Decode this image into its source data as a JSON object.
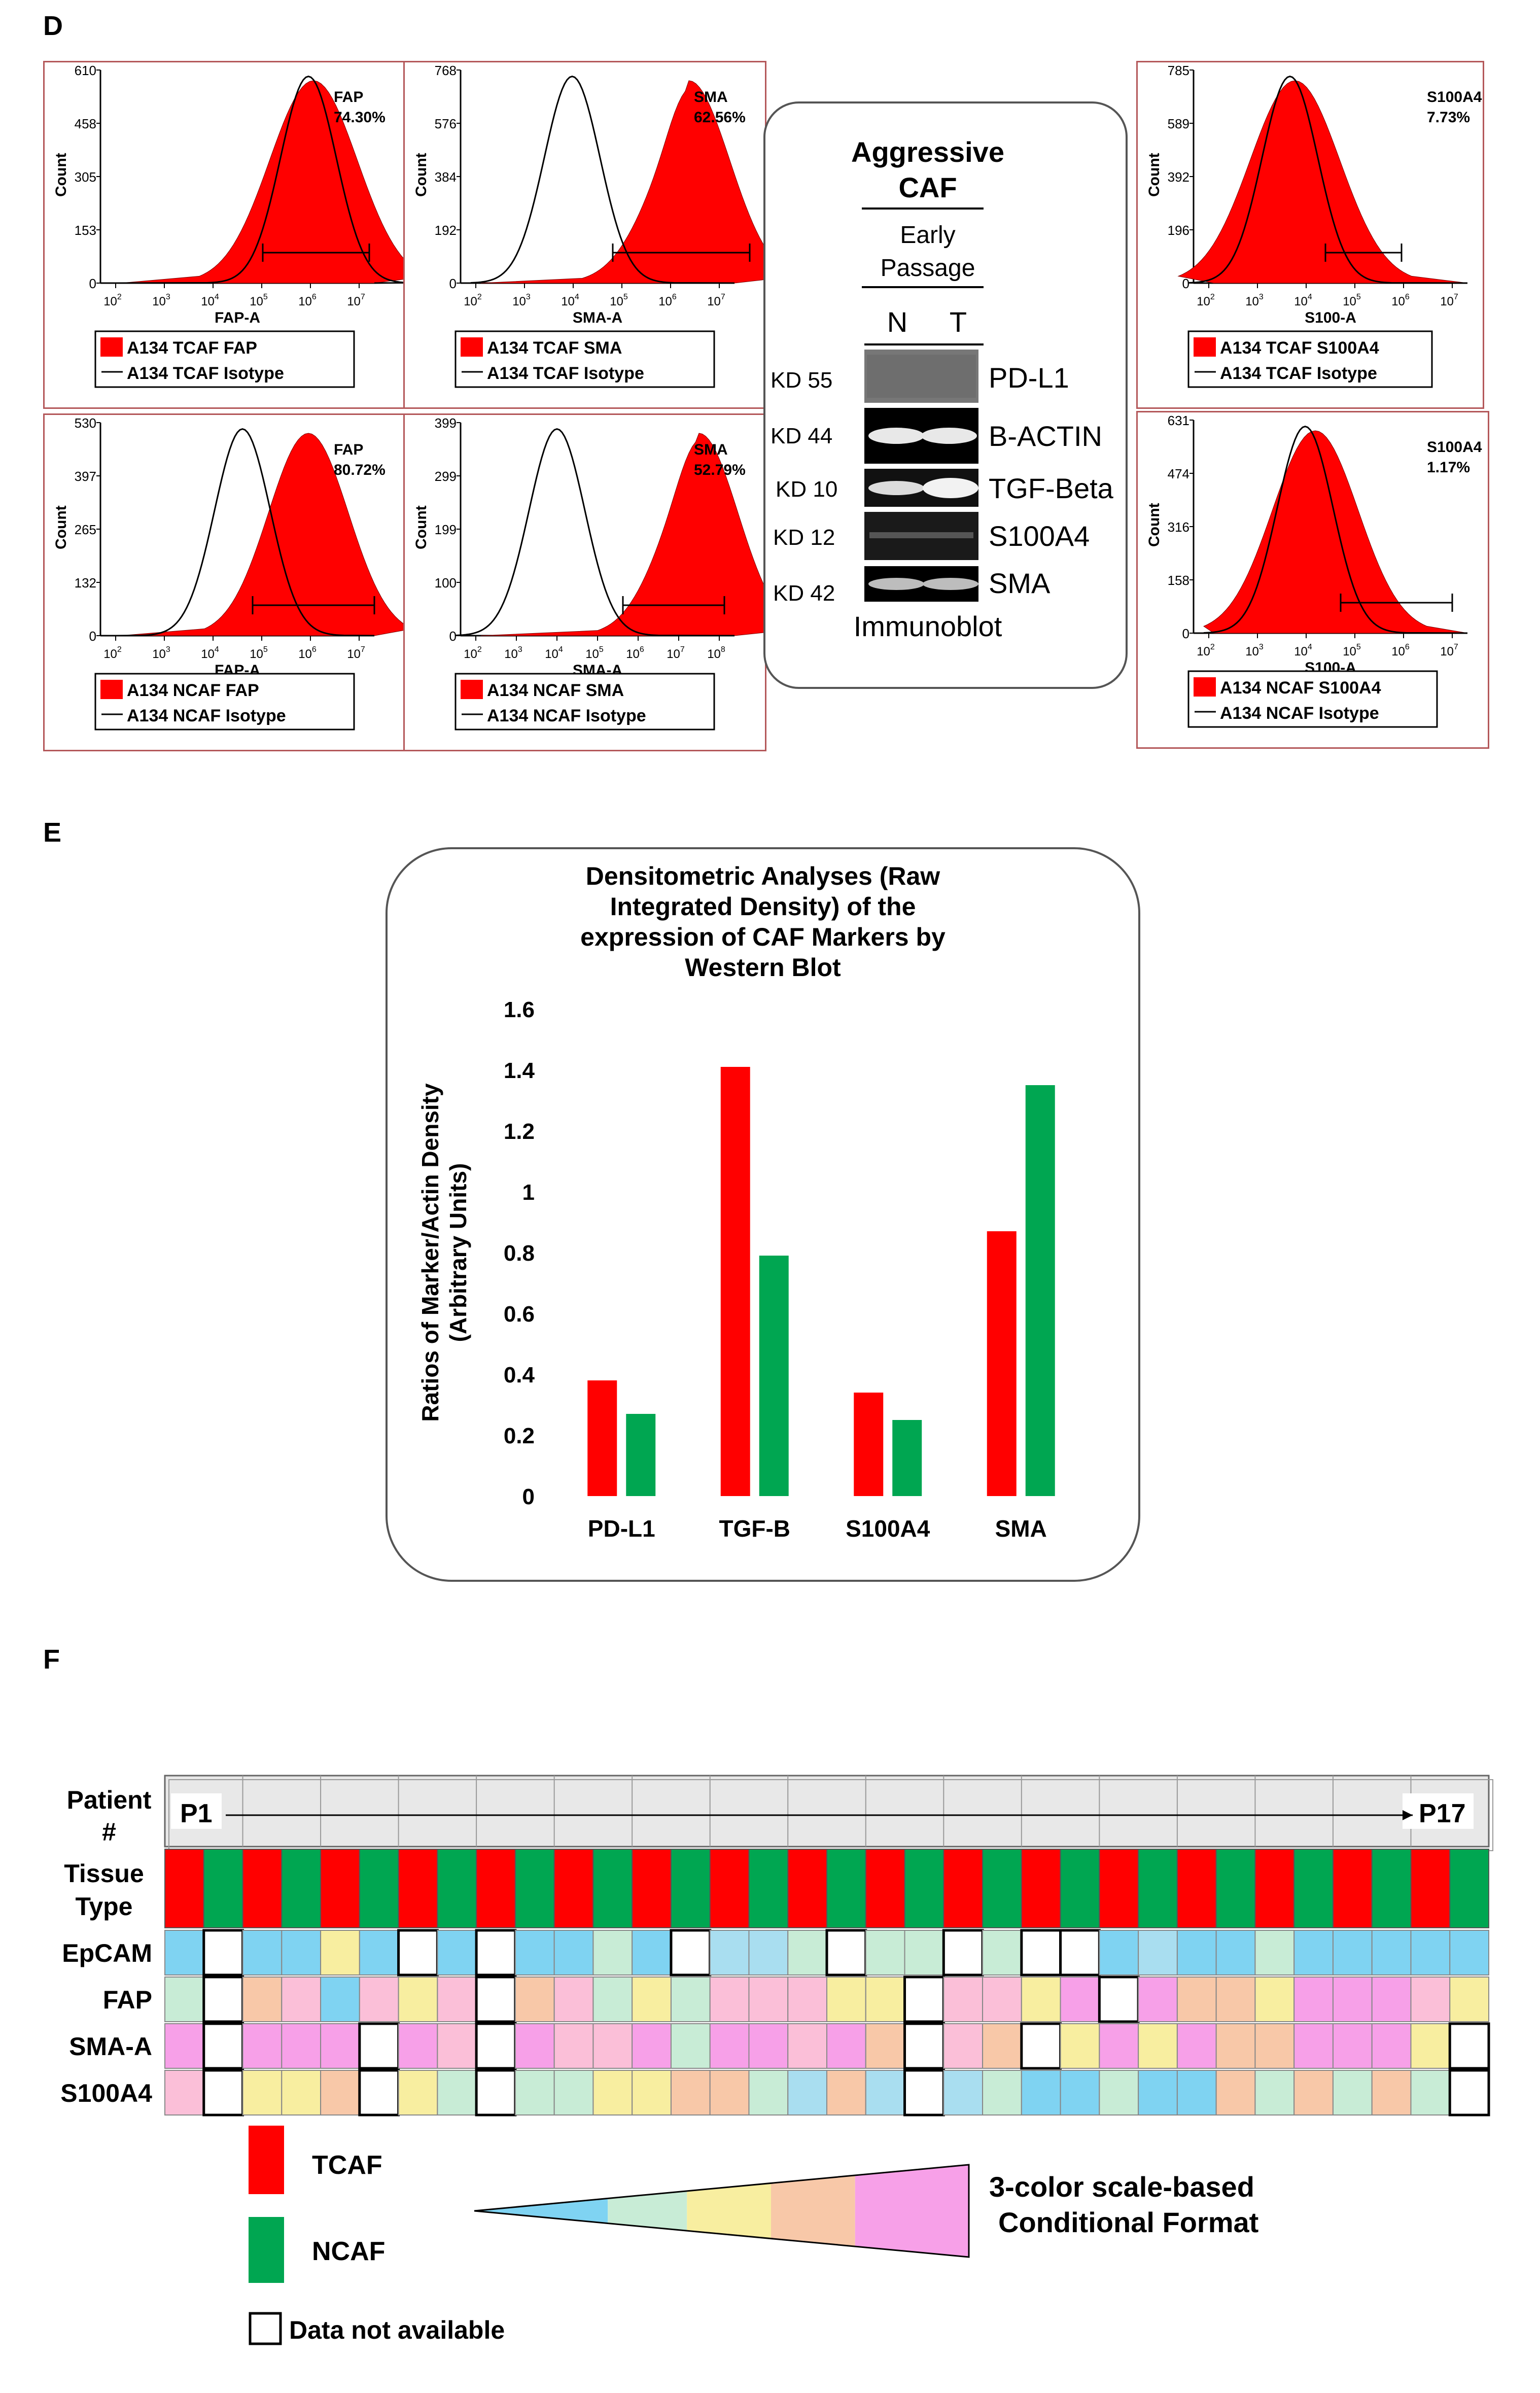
{
  "panels": {
    "d": "D",
    "e": "E",
    "f": "F"
  },
  "colors": {
    "tcaf": "#ff0000",
    "ncaf": "#00a651",
    "gate": "#000000",
    "frame": "#b4585a"
  },
  "flow_plots": [
    {
      "id": "tcaf-fap",
      "yticks": [
        "610",
        "458",
        "305",
        "153",
        "0"
      ],
      "xticks": [
        "2",
        "3",
        "4",
        "5",
        "6",
        "7"
      ],
      "ylabel": "Count",
      "xlabel": "FAP-A",
      "marker": "FAP",
      "percent": "74.30%",
      "legend_fill": "A134 TCAF FAP",
      "legend_line": "A134 TCAF Isotype"
    },
    {
      "id": "tcaf-sma",
      "yticks": [
        "768",
        "576",
        "384",
        "192",
        "0"
      ],
      "xticks": [
        "2",
        "3",
        "4",
        "5",
        "6",
        "7"
      ],
      "ylabel": "Count",
      "xlabel": "SMA-A",
      "marker": "SMA",
      "percent": "62.56%",
      "legend_fill": "A134 TCAF SMA",
      "legend_line": "A134 TCAF Isotype"
    },
    {
      "id": "tcaf-s100",
      "yticks": [
        "785",
        "589",
        "392",
        "196",
        "0"
      ],
      "xticks": [
        "2",
        "3",
        "4",
        "5",
        "6",
        "7"
      ],
      "ylabel": "Count",
      "xlabel": "S100-A",
      "marker": "S100A4",
      "percent": "7.73%",
      "legend_fill": "A134 TCAF S100A4",
      "legend_line": "A134 TCAF Isotype"
    },
    {
      "id": "ncaf-fap",
      "yticks": [
        "530",
        "397",
        "265",
        "132",
        "0"
      ],
      "xticks": [
        "2",
        "3",
        "4",
        "5",
        "6",
        "7"
      ],
      "ylabel": "Count",
      "xlabel": "FAP-A",
      "marker": "FAP",
      "percent": "80.72%",
      "legend_fill": "A134 NCAF FAP",
      "legend_line": "A134 NCAF Isotype"
    },
    {
      "id": "ncaf-sma",
      "yticks": [
        "399",
        "299",
        "199",
        "100",
        "0"
      ],
      "xticks": [
        "2",
        "3",
        "4",
        "5",
        "6",
        "7",
        "8"
      ],
      "ylabel": "Count",
      "xlabel": "SMA-A",
      "marker": "SMA",
      "percent": "52.79%",
      "legend_fill": "A134 NCAF SMA",
      "legend_line": "A134 NCAF Isotype"
    },
    {
      "id": "ncaf-s100",
      "yticks": [
        "631",
        "474",
        "316",
        "158",
        "0"
      ],
      "xticks": [
        "2",
        "3",
        "4",
        "5",
        "6",
        "7"
      ],
      "ylabel": "Count",
      "xlabel": "S100-A",
      "marker": "S100A4",
      "percent": "1.17%",
      "legend_fill": "A134 NCAF S100A4",
      "legend_line": "A134 NCAF Isotype"
    }
  ],
  "western": {
    "title": "Aggressive CAF",
    "subtitle": "Early Passage",
    "lanes": [
      "N",
      "T"
    ],
    "rows": [
      {
        "kd": "KD 55",
        "band": "PD-L1"
      },
      {
        "kd": "KD 44",
        "band": "B-ACTIN"
      },
      {
        "kd": "KD 10",
        "band": "TGF-Beta"
      },
      {
        "kd": "KD 12",
        "band": "S100A4"
      },
      {
        "kd": "KD 42",
        "band": "SMA"
      }
    ],
    "caption": "Immunoblot"
  },
  "chart_data": {
    "type": "bar",
    "title": "Densitometric Analyses (Raw Integrated Density)  of the expression of CAF Markers by Western Blot",
    "title_lines": [
      "Densitometric Analyses (Raw",
      "Integrated Density)  of the",
      "expression of CAF Markers by",
      "Western Blot"
    ],
    "ylabel": "Ratios of Marker/Actin Density",
    "ylabel2": "(Arbitrary Units)",
    "categories": [
      "PD-L1",
      "TGF-B",
      "S100A4",
      "SMA"
    ],
    "series": [
      {
        "values": [
          0.38,
          1.41,
          0.34,
          0.87
        ],
        "color": "#ff0000"
      },
      {
        "values": [
          0.27,
          0.79,
          0.25,
          1.35
        ],
        "color": "#00a651"
      }
    ],
    "ylim": [
      0,
      1.6
    ],
    "yticks": [
      "0",
      "0.2",
      "0.4",
      "0.6",
      "0.8",
      "1",
      "1.2",
      "1.4",
      "1.6"
    ],
    "grid": false
  },
  "heatmap": {
    "header_label": "Patient #",
    "start_label": "P1",
    "end_label": "P17",
    "row_labels": [
      "Tissue Type",
      "EpCAM",
      "FAP",
      "SMA-A",
      "S100A4"
    ],
    "palette": {
      "1": "#7fd3f2",
      "2": "#c8ecd6",
      "3": "#f8eea0",
      "4": "#f8c8a8",
      "5": "#f7a0e8",
      "6": "#fbbfd8",
      "7": "#a9def0",
      "0": "#ffffff"
    },
    "epcam": [
      1,
      0,
      1,
      1,
      3,
      1,
      0,
      1,
      0,
      1,
      1,
      2,
      1,
      0,
      7,
      7,
      2,
      0,
      2,
      2,
      0,
      2,
      0,
      0,
      1,
      7,
      1,
      1,
      2,
      1,
      1,
      1,
      1,
      1
    ],
    "fap": [
      2,
      0,
      4,
      6,
      1,
      6,
      3,
      6,
      0,
      4,
      6,
      2,
      3,
      2,
      6,
      6,
      6,
      3,
      3,
      0,
      6,
      6,
      3,
      5,
      0,
      5,
      4,
      4,
      3,
      5,
      5,
      5,
      6,
      3
    ],
    "sma": [
      5,
      0,
      5,
      5,
      5,
      0,
      5,
      6,
      0,
      5,
      6,
      6,
      5,
      2,
      5,
      5,
      6,
      5,
      4,
      0,
      6,
      4,
      0,
      3,
      5,
      3,
      5,
      4,
      4,
      5,
      5,
      5,
      3,
      0
    ],
    "s100": [
      6,
      0,
      3,
      3,
      4,
      0,
      3,
      2,
      0,
      2,
      2,
      3,
      3,
      4,
      4,
      2,
      7,
      4,
      7,
      0,
      7,
      2,
      1,
      1,
      2,
      1,
      1,
      4,
      2,
      4,
      2,
      4,
      2,
      0
    ]
  },
  "legend_f": {
    "tcaf": "TCAF",
    "ncaf": "NCAF",
    "na": "Data not available",
    "scale_line1": "3-color scale-based",
    "scale_line2": "Conditional Format"
  }
}
